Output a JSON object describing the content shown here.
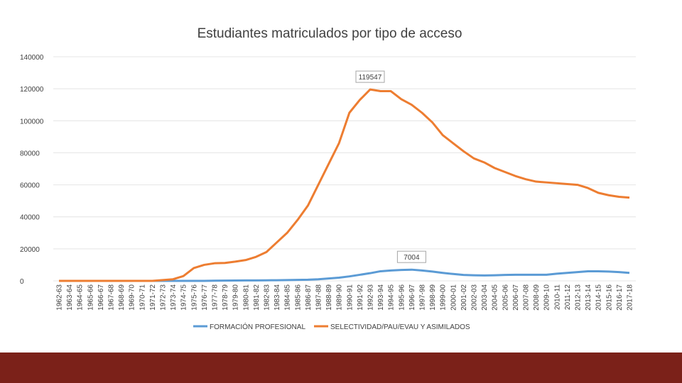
{
  "chart_data": {
    "type": "line",
    "title": "Estudiantes matriculados por tipo de acceso",
    "categories": [
      "1962-63",
      "1963-64",
      "1964-65",
      "1965-66",
      "1966-67",
      "1967-68",
      "1968-69",
      "1969-70",
      "1970-71",
      "1971-72",
      "1972-73",
      "1973-74",
      "1974-75",
      "1975-76",
      "1976-77",
      "1977-78",
      "1978-79",
      "1979-80",
      "1980-81",
      "1981-82",
      "1982-83",
      "1983-84",
      "1984-85",
      "1985-86",
      "1986-87",
      "1987-88",
      "1988-89",
      "1989-90",
      "1990-91",
      "1991-92",
      "1992-93",
      "1993-94",
      "1994-95",
      "1995-96",
      "1996-97",
      "1997-98",
      "1998-99",
      "1999-00",
      "2000-01",
      "2001-02",
      "2002-03",
      "2003-04",
      "2004-05",
      "2005-06",
      "2006-07",
      "2007-08",
      "2008-09",
      "2009-10",
      "2010-11",
      "2011-12",
      "2012-13",
      "2013-14",
      "2014-15",
      "2015-16",
      "2016-17",
      "2017-18"
    ],
    "series": [
      {
        "name": "FORMACIÓN PROFESIONAL",
        "color": "#5b9bd5",
        "data_labels": [
          34
        ],
        "values": [
          0,
          0,
          0,
          0,
          0,
          0,
          0,
          0,
          0,
          0,
          0,
          0,
          0,
          0,
          0,
          100,
          150,
          200,
          250,
          300,
          350,
          400,
          500,
          600,
          700,
          1000,
          1500,
          2000,
          2800,
          3800,
          4800,
          6000,
          6500,
          6800,
          7004,
          6500,
          5800,
          5000,
          4300,
          3700,
          3500,
          3400,
          3500,
          3700,
          3800,
          3800,
          3800,
          3800,
          4500,
          5000,
          5500,
          6000,
          6000,
          5800,
          5500,
          5000
        ]
      },
      {
        "name": "SELECTIVIDAD/PAU/EVAU Y ASIMILADOS",
        "color": "#ed7d31",
        "data_labels": [
          30
        ],
        "values": [
          0,
          0,
          0,
          0,
          0,
          0,
          0,
          0,
          0,
          0,
          500,
          1000,
          3000,
          8000,
          10000,
          11000,
          11200,
          12000,
          13000,
          15000,
          18000,
          24000,
          30000,
          38000,
          47000,
          60000,
          73000,
          86000,
          105000,
          113000,
          119547,
          118500,
          118500,
          113500,
          110000,
          105000,
          99000,
          91000,
          86000,
          81000,
          76500,
          74000,
          70500,
          68000,
          65500,
          63500,
          62000,
          61500,
          61000,
          60500,
          60000,
          58000,
          55000,
          53500,
          52500,
          52000
        ]
      }
    ],
    "ylim": [
      0,
      140000
    ],
    "yticks": [
      0,
      20000,
      40000,
      60000,
      80000,
      100000,
      120000,
      140000
    ],
    "grid": true,
    "legend": "bottom"
  }
}
